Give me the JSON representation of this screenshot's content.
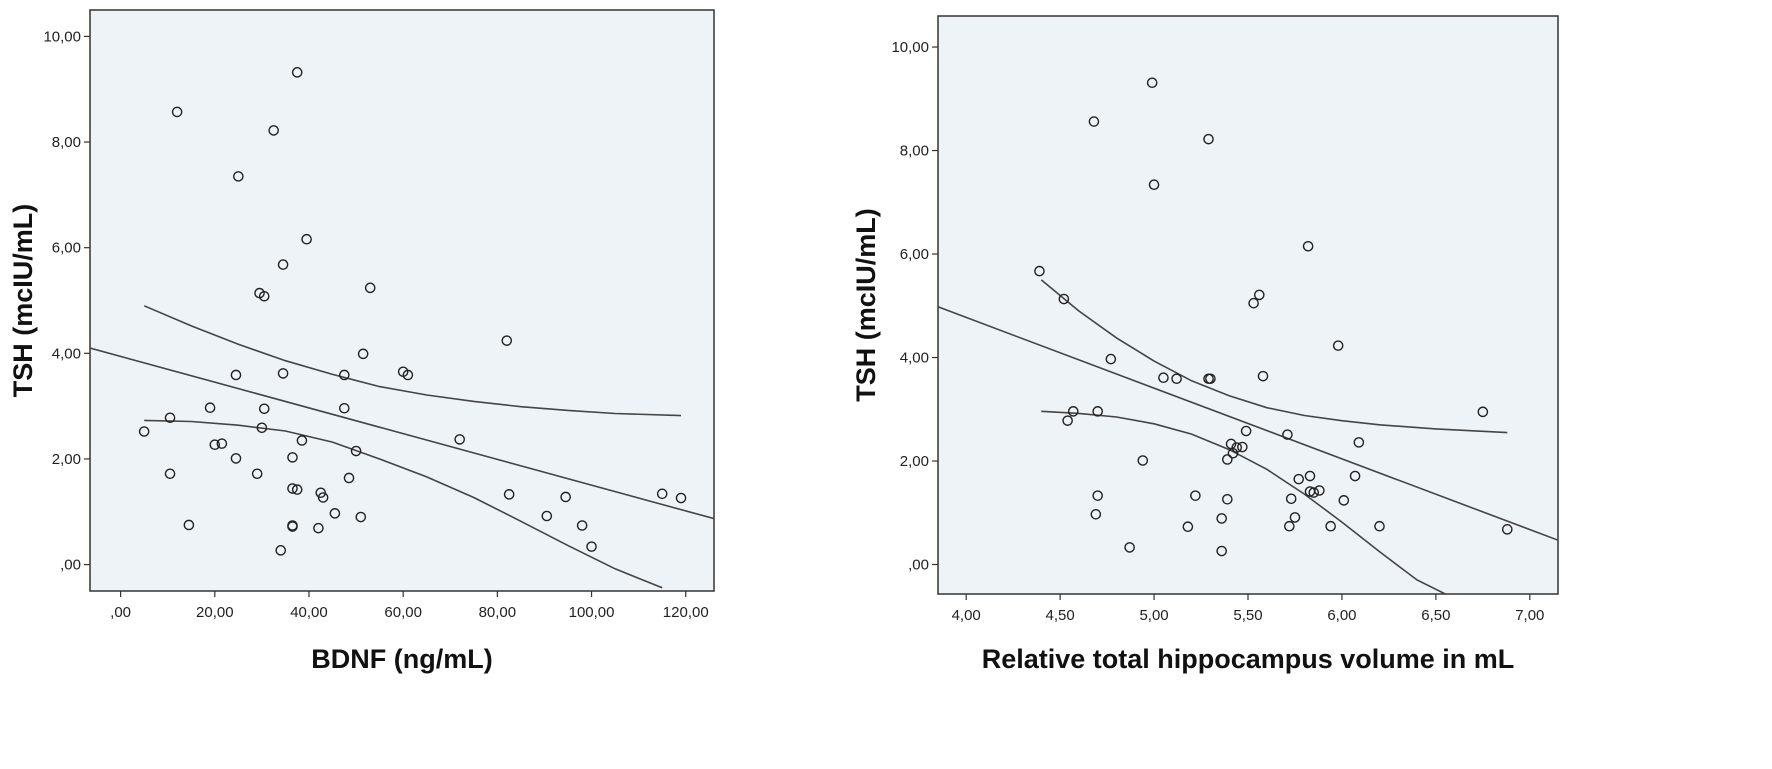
{
  "chart_data": [
    {
      "type": "scatter",
      "xlabel": "BDNF (ng/mL)",
      "ylabel": "TSH (mcIU/mL)",
      "xlim": [
        -6.5,
        126
      ],
      "ylim": [
        -0.5,
        10.5
      ],
      "x_ticks": [
        0,
        20,
        40,
        60,
        80,
        100,
        120
      ],
      "x_tick_labels": [
        ",00",
        "20,00",
        "40,00",
        "60,00",
        "80,00",
        "100,00",
        "120,00"
      ],
      "y_ticks": [
        0,
        2,
        4,
        6,
        8,
        10
      ],
      "y_tick_labels": [
        ",00",
        "2,00",
        "4,00",
        "6,00",
        "8,00",
        "10,00"
      ],
      "grid": false,
      "points": [
        [
          37.5,
          9.32
        ],
        [
          12,
          8.57
        ],
        [
          32.5,
          8.22
        ],
        [
          25,
          7.35
        ],
        [
          39.5,
          6.16
        ],
        [
          34.5,
          5.68
        ],
        [
          29.5,
          5.14
        ],
        [
          30.5,
          5.08
        ],
        [
          53,
          5.24
        ],
        [
          51.5,
          3.99
        ],
        [
          82,
          4.24
        ],
        [
          60,
          3.65
        ],
        [
          61,
          3.59
        ],
        [
          24.5,
          3.59
        ],
        [
          34.5,
          3.62
        ],
        [
          47.5,
          3.59
        ],
        [
          5,
          2.52
        ],
        [
          10.5,
          2.78
        ],
        [
          19,
          2.97
        ],
        [
          30.5,
          2.95
        ],
        [
          47.5,
          2.96
        ],
        [
          30,
          2.59
        ],
        [
          72,
          2.37
        ],
        [
          38.5,
          2.35
        ],
        [
          20,
          2.27
        ],
        [
          21.5,
          2.29
        ],
        [
          50,
          2.15
        ],
        [
          24.5,
          2.01
        ],
        [
          36.5,
          2.03
        ],
        [
          10.5,
          1.72
        ],
        [
          29,
          1.72
        ],
        [
          48.5,
          1.64
        ],
        [
          36.5,
          1.44
        ],
        [
          37.5,
          1.42
        ],
        [
          42.5,
          1.36
        ],
        [
          43,
          1.27
        ],
        [
          82.5,
          1.33
        ],
        [
          94.5,
          1.28
        ],
        [
          115,
          1.34
        ],
        [
          119,
          1.26
        ],
        [
          45.5,
          0.97
        ],
        [
          51,
          0.9
        ],
        [
          90.5,
          0.92
        ],
        [
          98,
          0.74
        ],
        [
          14.5,
          0.75
        ],
        [
          36.5,
          0.74
        ],
        [
          36.5,
          0.72
        ],
        [
          42,
          0.69
        ],
        [
          100,
          0.34
        ],
        [
          34,
          0.27
        ]
      ],
      "fit_line": {
        "x": [
          -6.5,
          126
        ],
        "y": [
          4.1,
          0.87
        ]
      },
      "ci_upper": {
        "x": [
          5,
          15,
          25,
          35,
          45,
          55,
          65,
          75,
          85,
          95,
          105,
          119
        ],
        "y": [
          4.9,
          4.52,
          4.17,
          3.86,
          3.6,
          3.37,
          3.21,
          3.09,
          2.99,
          2.92,
          2.86,
          2.82
        ]
      },
      "ci_lower": {
        "x": [
          5,
          15,
          25,
          35,
          45,
          55,
          65,
          75,
          85,
          95,
          105,
          115
        ],
        "y": [
          2.73,
          2.71,
          2.64,
          2.53,
          2.32,
          2.0,
          1.66,
          1.27,
          0.82,
          0.36,
          -0.08,
          -0.44
        ]
      }
    },
    {
      "type": "scatter",
      "xlabel": "Relative total hippocampus volume in mL",
      "ylabel": "TSH (mcIU/mL)",
      "xlim": [
        3.85,
        7.15
      ],
      "ylim": [
        -0.57,
        10.6
      ],
      "x_ticks": [
        4,
        4.5,
        5,
        5.5,
        6,
        6.5,
        7
      ],
      "x_tick_labels": [
        "4,00",
        "4,50",
        "5,00",
        "5,50",
        "6,00",
        "6,50",
        "7,00"
      ],
      "y_ticks": [
        0,
        2,
        4,
        6,
        8,
        10
      ],
      "y_tick_labels": [
        ",00",
        "2,00",
        "4,00",
        "6,00",
        "8,00",
        "10,00"
      ],
      "grid": false,
      "points": [
        [
          4.99,
          9.31
        ],
        [
          4.68,
          8.56
        ],
        [
          5.29,
          8.22
        ],
        [
          5.0,
          7.34
        ],
        [
          5.82,
          6.15
        ],
        [
          4.39,
          5.67
        ],
        [
          4.52,
          5.13
        ],
        [
          5.56,
          5.21
        ],
        [
          5.53,
          5.05
        ],
        [
          4.77,
          3.97
        ],
        [
          5.98,
          4.23
        ],
        [
          5.05,
          3.61
        ],
        [
          5.12,
          3.59
        ],
        [
          5.29,
          3.59
        ],
        [
          5.3,
          3.59
        ],
        [
          5.58,
          3.64
        ],
        [
          4.57,
          2.96
        ],
        [
          4.7,
          2.96
        ],
        [
          6.75,
          2.95
        ],
        [
          4.54,
          2.78
        ],
        [
          5.49,
          2.58
        ],
        [
          5.71,
          2.51
        ],
        [
          6.09,
          2.36
        ],
        [
          5.41,
          2.33
        ],
        [
          5.44,
          2.26
        ],
        [
          5.47,
          2.27
        ],
        [
          5.42,
          2.15
        ],
        [
          5.39,
          2.03
        ],
        [
          4.94,
          2.01
        ],
        [
          5.83,
          1.71
        ],
        [
          6.07,
          1.71
        ],
        [
          5.77,
          1.65
        ],
        [
          5.83,
          1.41
        ],
        [
          5.85,
          1.39
        ],
        [
          5.88,
          1.43
        ],
        [
          4.7,
          1.33
        ],
        [
          5.22,
          1.33
        ],
        [
          5.39,
          1.26
        ],
        [
          5.73,
          1.27
        ],
        [
          6.01,
          1.24
        ],
        [
          4.69,
          0.97
        ],
        [
          5.36,
          0.89
        ],
        [
          5.75,
          0.91
        ],
        [
          5.18,
          0.73
        ],
        [
          5.72,
          0.74
        ],
        [
          5.94,
          0.74
        ],
        [
          6.2,
          0.74
        ],
        [
          6.88,
          0.68
        ],
        [
          4.87,
          0.33
        ],
        [
          5.36,
          0.26
        ]
      ],
      "fit_line": {
        "x": [
          3.85,
          7.15
        ],
        "y": [
          4.98,
          0.47
        ]
      },
      "ci_upper": {
        "x": [
          4.4,
          4.6,
          4.8,
          5.0,
          5.2,
          5.4,
          5.6,
          5.8,
          6.0,
          6.2,
          6.5,
          6.88
        ],
        "y": [
          5.5,
          4.9,
          4.38,
          3.93,
          3.55,
          3.26,
          3.03,
          2.88,
          2.78,
          2.7,
          2.62,
          2.55
        ]
      },
      "ci_lower": {
        "x": [
          4.4,
          4.6,
          4.8,
          5.0,
          5.2,
          5.4,
          5.6,
          5.8,
          6.0,
          6.2,
          6.4,
          6.55
        ],
        "y": [
          2.96,
          2.92,
          2.85,
          2.72,
          2.52,
          2.22,
          1.84,
          1.36,
          0.82,
          0.25,
          -0.3,
          -0.57
        ]
      }
    }
  ]
}
